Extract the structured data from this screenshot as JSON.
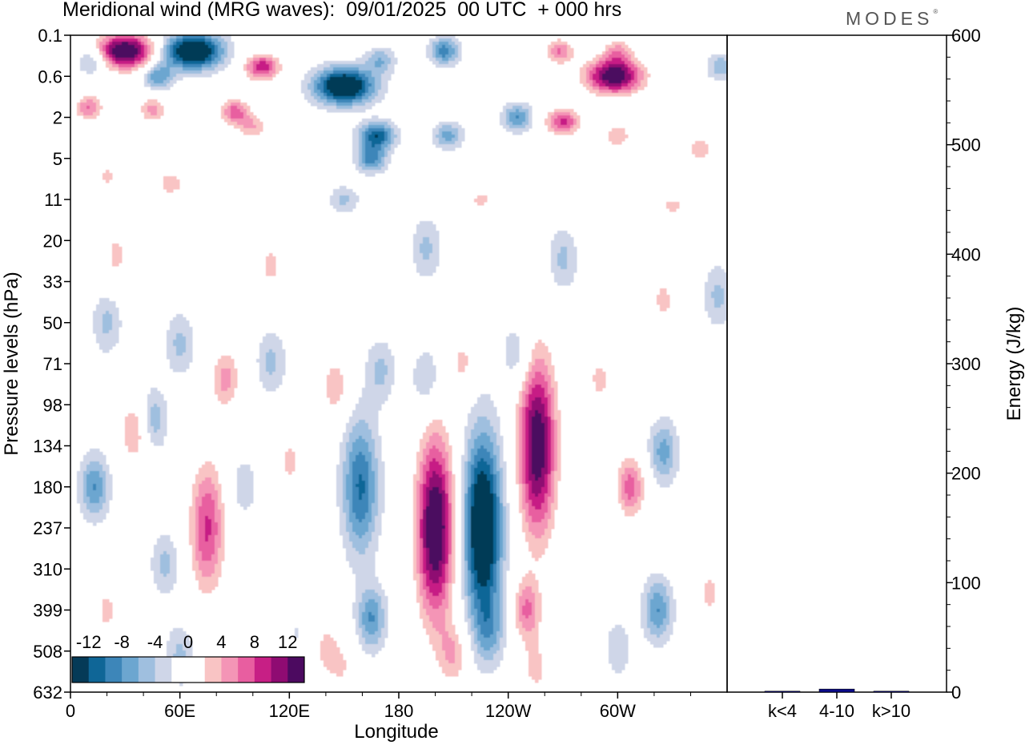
{
  "header": {
    "title": "Meridional wind (MRG waves):  09/01/2025  00 UTC  + 000 hrs",
    "brand": "MODES",
    "brand_mark": "®"
  },
  "chart_data": [
    {
      "type": "heatmap",
      "title": "Meridional wind (MRG waves):  09/01/2025  00 UTC  + 000 hrs",
      "xlabel": "Longitude",
      "ylabel": "Pressure levels (hPa)",
      "x_ticks": [
        "0",
        "60E",
        "120E",
        "180",
        "120W",
        "60W"
      ],
      "x_tick_degrees": [
        0,
        60,
        120,
        180,
        240,
        300
      ],
      "xlim": [
        0,
        360
      ],
      "y_ticks": [
        "0.1",
        "0.6",
        "2",
        "5",
        "11",
        "20",
        "33",
        "50",
        "71",
        "98",
        "134",
        "180",
        "237",
        "310",
        "399",
        "508",
        "632"
      ],
      "colorbar": {
        "labels": [
          "-12",
          "-8",
          "-4",
          "0",
          "4",
          "8",
          "12"
        ],
        "levels": [
          -14,
          -12,
          -10,
          -8,
          -6,
          -4,
          -2,
          2,
          4,
          6,
          8,
          10,
          12,
          14
        ],
        "colors": [
          "#053a57",
          "#0f6697",
          "#3d86b9",
          "#6ca6d0",
          "#9fbfdf",
          "#cfd6e8",
          "#ffffff",
          "#ffffff",
          "#f9c4c4",
          "#f495b6",
          "#e85ea0",
          "#c71f85",
          "#8f0b72",
          "#4c0a60"
        ]
      },
      "features": [
        {
          "lon": 200,
          "pressure": 237,
          "value": 15
        },
        {
          "lon": 226,
          "pressure": 237,
          "value": -15
        },
        {
          "lon": 256,
          "pressure": 134,
          "value": 14
        },
        {
          "lon": 159,
          "pressure": 180,
          "value": -9
        },
        {
          "lon": 307,
          "pressure": 180,
          "value": 8
        },
        {
          "lon": 75,
          "pressure": 237,
          "value": 9
        },
        {
          "lon": 13,
          "pressure": 180,
          "value": -7
        },
        {
          "lon": 322,
          "pressure": 399,
          "value": -7
        },
        {
          "lon": 250,
          "pressure": 399,
          "value": 7
        },
        {
          "lon": 30,
          "pressure": 0.2,
          "value": 15
        },
        {
          "lon": 67,
          "pressure": 0.2,
          "value": -15
        },
        {
          "lon": 150,
          "pressure": 0.8,
          "value": -15
        },
        {
          "lon": 298,
          "pressure": 0.6,
          "value": 14
        }
      ]
    },
    {
      "type": "bar",
      "ylabel": "Energy (J/kg)",
      "ylim": [
        0,
        600
      ],
      "y_ticks": [
        "0",
        "100",
        "200",
        "300",
        "400",
        "500",
        "600"
      ],
      "categories": [
        "k<4",
        "4-10",
        "k>10"
      ],
      "values": [
        0.3,
        2.8,
        0.2
      ],
      "colors": [
        "#0a0a8a",
        "#0a0a8a",
        "#0a0a8a"
      ]
    }
  ]
}
